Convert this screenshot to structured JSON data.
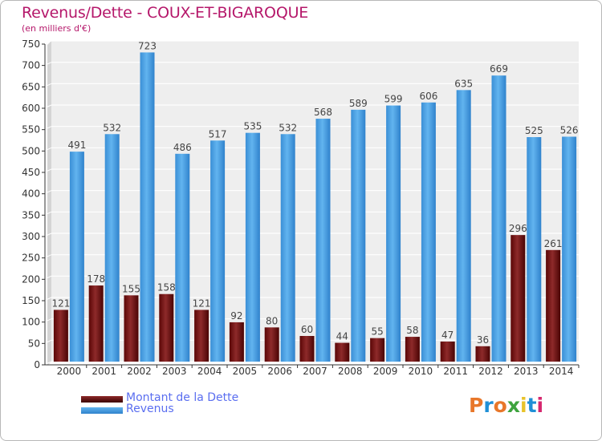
{
  "title": "Revenus/Dette - COUX-ET-BIGAROQUE",
  "subtitle": "(en milliers d'€)",
  "logo_text": "Proxiti",
  "colors": {
    "title": "#b5176a",
    "dette": "#7a1010",
    "revenus": "#4fa6e3",
    "legend_text": "#5a6ef0",
    "plot_background": "#eeeeee",
    "grid": "#ffffff"
  },
  "legend": {
    "dette_label": "Montant de la Dette",
    "revenus_label": "Revenus"
  },
  "chart_data": {
    "type": "bar",
    "title": "Revenus/Dette - COUX-ET-BIGAROQUE",
    "subtitle": "(en milliers d'€)",
    "xlabel": "",
    "ylabel": "",
    "categories": [
      "2000",
      "2001",
      "2002",
      "2003",
      "2004",
      "2005",
      "2006",
      "2007",
      "2008",
      "2009",
      "2010",
      "2011",
      "2012",
      "2013",
      "2014"
    ],
    "series": [
      {
        "name": "Montant de la Dette",
        "values": [
          121,
          178,
          155,
          158,
          121,
          92,
          80,
          60,
          44,
          55,
          58,
          47,
          36,
          296,
          261
        ]
      },
      {
        "name": "Revenus",
        "values": [
          491,
          532,
          723,
          486,
          517,
          535,
          532,
          568,
          589,
          599,
          606,
          635,
          669,
          525,
          526
        ]
      }
    ],
    "ylim": [
      0,
      750
    ],
    "yticks": [
      0,
      50,
      100,
      150,
      200,
      250,
      300,
      350,
      400,
      450,
      500,
      550,
      600,
      650,
      700,
      750
    ],
    "grid": true,
    "legend_position": "bottom-left"
  }
}
